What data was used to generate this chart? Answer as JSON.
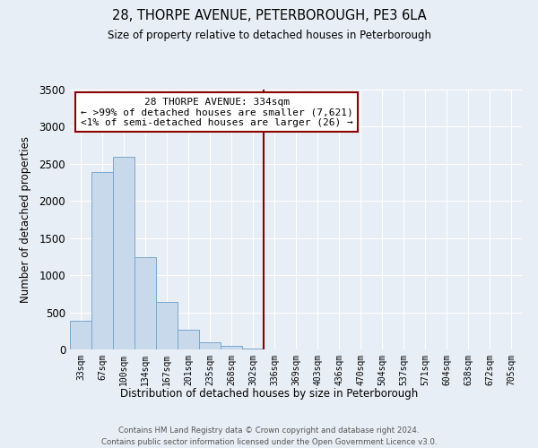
{
  "title": "28, THORPE AVENUE, PETERBOROUGH, PE3 6LA",
  "subtitle": "Size of property relative to detached houses in Peterborough",
  "xlabel": "Distribution of detached houses by size in Peterborough",
  "ylabel": "Number of detached properties",
  "bar_labels": [
    "33sqm",
    "67sqm",
    "100sqm",
    "134sqm",
    "167sqm",
    "201sqm",
    "235sqm",
    "268sqm",
    "302sqm",
    "336sqm",
    "369sqm",
    "403sqm",
    "436sqm",
    "470sqm",
    "504sqm",
    "537sqm",
    "571sqm",
    "604sqm",
    "638sqm",
    "672sqm",
    "705sqm"
  ],
  "bar_values": [
    390,
    2390,
    2600,
    1240,
    640,
    260,
    100,
    45,
    15,
    5,
    2,
    1,
    0,
    0,
    0,
    0,
    0,
    0,
    0,
    0,
    0
  ],
  "bar_color": "#c9d9ec",
  "bar_edge_color": "#7aa8cc",
  "ylim": [
    0,
    3500
  ],
  "yticks": [
    0,
    500,
    1000,
    1500,
    2000,
    2500,
    3000,
    3500
  ],
  "vline_color": "#8b0000",
  "annotation_title": "28 THORPE AVENUE: 334sqm",
  "annotation_line1": "← >99% of detached houses are smaller (7,621)",
  "annotation_line2": "<1% of semi-detached houses are larger (26) →",
  "annotation_box_color": "#ffffff",
  "annotation_box_edge": "#8b0000",
  "background_color": "#e8eef5",
  "grid_color": "#ffffff",
  "footer_line1": "Contains HM Land Registry data © Crown copyright and database right 2024.",
  "footer_line2": "Contains public sector information licensed under the Open Government Licence v3.0."
}
